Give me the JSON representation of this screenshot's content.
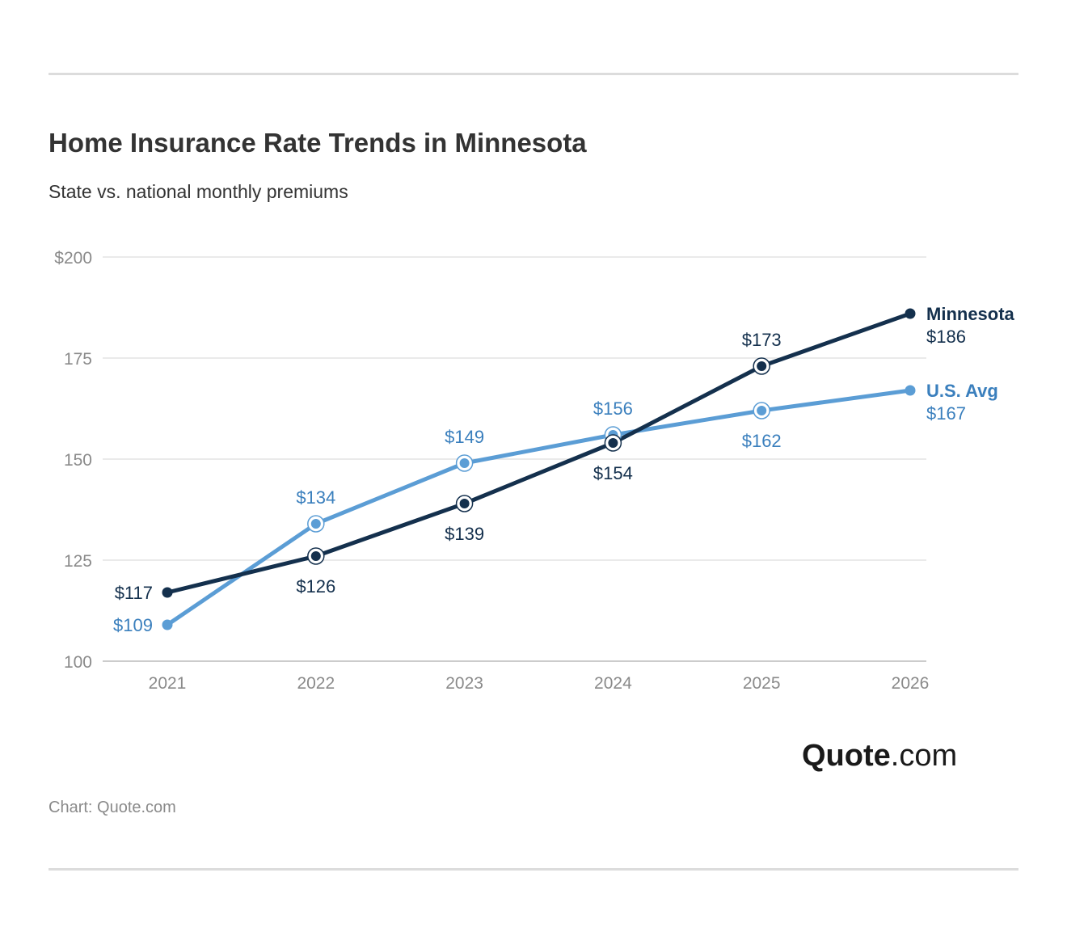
{
  "header": {
    "title": "Home Insurance Rate Trends in Minnesota",
    "subtitle": "State vs. national monthly premiums"
  },
  "footer": {
    "source": "Chart: Quote.com",
    "logo_brand": "Quote",
    "logo_suffix": ".com"
  },
  "colors": {
    "minnesota": "#14304d",
    "us_avg": "#5b9dd5",
    "us_avg_label": "#3a7fbd",
    "grid": "#e3e3e3",
    "axis": "#cccccc",
    "tick_label": "#8a8a8a"
  },
  "chart_data": {
    "type": "line",
    "x": [
      "2021",
      "2022",
      "2023",
      "2024",
      "2025",
      "2026"
    ],
    "ylim": [
      100,
      200
    ],
    "y_ticks": [
      100,
      125,
      150,
      175,
      200
    ],
    "y_tick_labels": [
      "100",
      "125",
      "150",
      "175",
      "$200"
    ],
    "grid": true,
    "legend": "inline-right",
    "series": [
      {
        "name": "Minnesota",
        "values": [
          117,
          126,
          139,
          154,
          173,
          186
        ],
        "labels": [
          "$117",
          "$126",
          "$139",
          "$154",
          "$173",
          "$186"
        ]
      },
      {
        "name": "U.S. Avg",
        "values": [
          109,
          134,
          149,
          156,
          162,
          167
        ],
        "labels": [
          "$109",
          "$134",
          "$149",
          "$156",
          "$162",
          "$167"
        ]
      }
    ]
  }
}
